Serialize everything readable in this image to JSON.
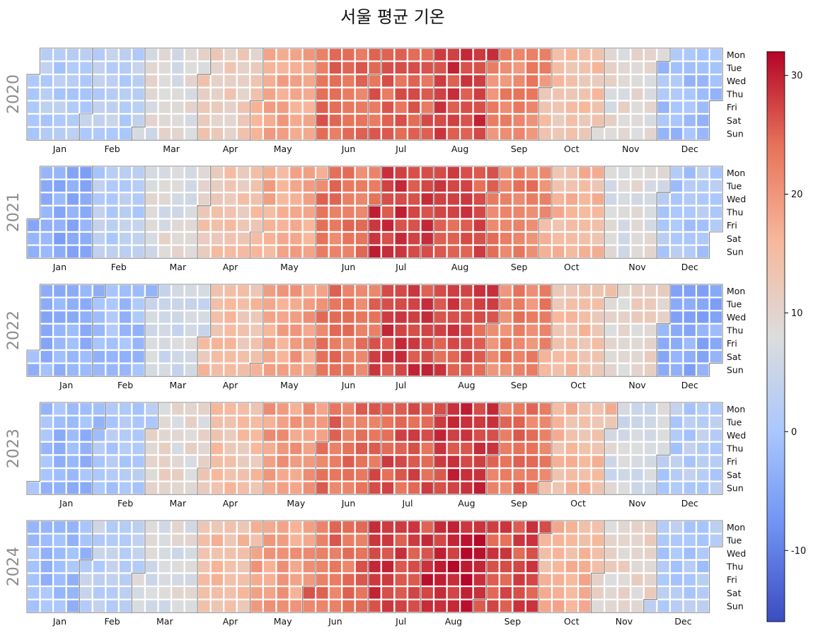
{
  "title": "서울 평균 기온",
  "chart_data": {
    "type": "heatmap",
    "title": "서울 평균 기온",
    "years": [
      2020,
      2021,
      2022,
      2023,
      2024
    ],
    "weekday_labels": [
      "Mon",
      "Tue",
      "Wed",
      "Thu",
      "Fri",
      "Sat",
      "Sun"
    ],
    "month_labels": [
      "Jan",
      "Feb",
      "Mar",
      "Apr",
      "May",
      "Jun",
      "Jul",
      "Aug",
      "Sep",
      "Oct",
      "Nov",
      "Dec"
    ],
    "monthly_base_temperature": {
      "2020": [
        1.5,
        2.5,
        8,
        12,
        18,
        24,
        24.5,
        27.5,
        21.5,
        14,
        9,
        -1
      ],
      "2021": [
        -4,
        2,
        8,
        13.5,
        17,
        23,
        28,
        26.5,
        22.5,
        15.5,
        7.5,
        0.5
      ],
      "2022": [
        -3,
        -1,
        6.5,
        14.5,
        18.5,
        23.5,
        27.5,
        26.5,
        22,
        14.5,
        10,
        -4
      ],
      "2023": [
        -2,
        1,
        9.5,
        14,
        19,
        24,
        26,
        28,
        23.5,
        15.5,
        7,
        1.5
      ],
      "2024": [
        -1.5,
        3,
        7.5,
        15,
        19,
        24,
        27.5,
        29.5,
        26.5,
        16,
        10,
        1
      ]
    },
    "colorbar": {
      "min": -16,
      "max": 32,
      "ticks": [
        -10,
        0,
        10,
        20,
        30
      ],
      "colormap": "coolwarm"
    },
    "colormap_stops": [
      "#3b4cc0",
      "#6f92f3",
      "#aac7fd",
      "#dcdddd",
      "#f7b89c",
      "#e7745b",
      "#b40426"
    ]
  }
}
